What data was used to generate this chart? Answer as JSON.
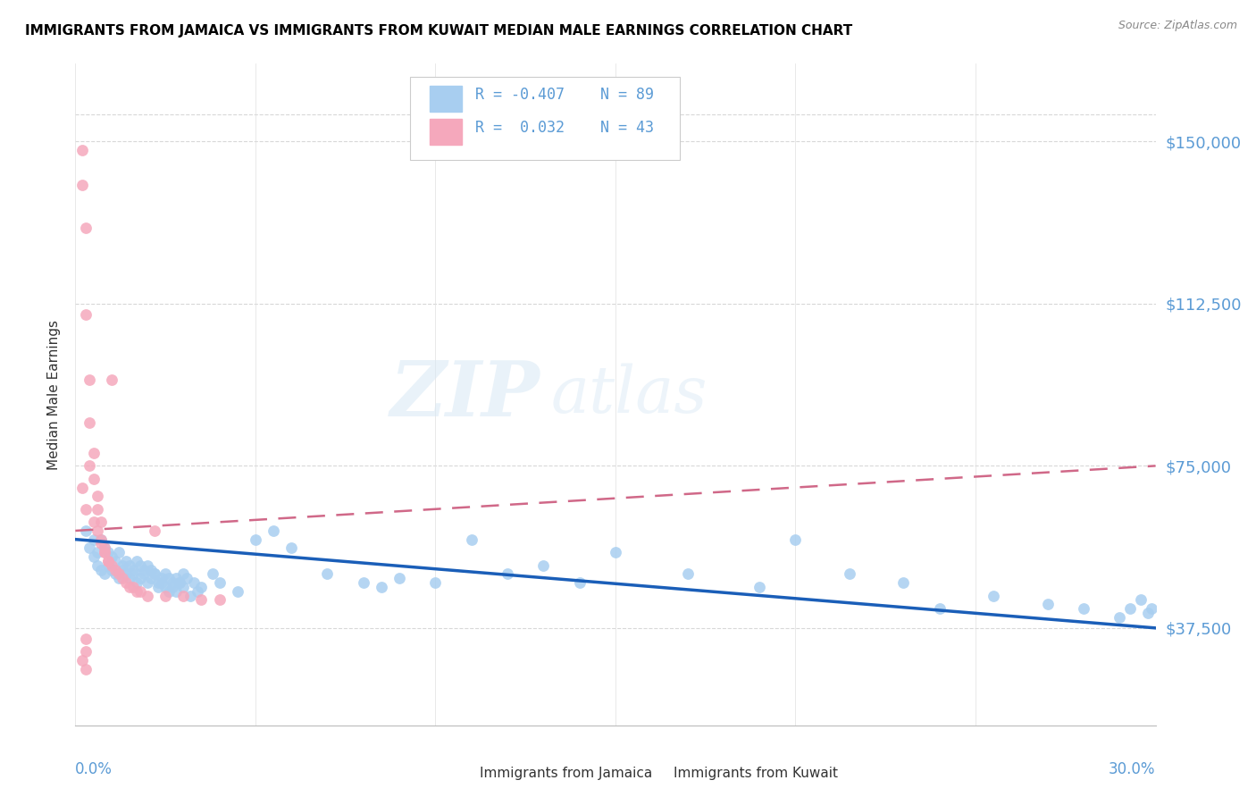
{
  "title": "IMMIGRANTS FROM JAMAICA VS IMMIGRANTS FROM KUWAIT MEDIAN MALE EARNINGS CORRELATION CHART",
  "source": "Source: ZipAtlas.com",
  "ylabel": "Median Male Earnings",
  "ytick_vals": [
    37500,
    75000,
    112500,
    150000
  ],
  "ytick_labels": [
    "$37,500",
    "$75,000",
    "$112,500",
    "$150,000"
  ],
  "ymin": 15000,
  "ymax": 168000,
  "xmin": 0.0,
  "xmax": 0.3,
  "jamaica_color": "#a8cef0",
  "jamaica_line_color": "#1a5eb8",
  "kuwait_color": "#f5a8bc",
  "kuwait_line_color": "#d06888",
  "jamaica_R": "-0.407",
  "jamaica_N": "89",
  "kuwait_R": "0.032",
  "kuwait_N": "43",
  "jamaica_label": "Immigrants from Jamaica",
  "kuwait_label": "Immigrants from Kuwait",
  "background_color": "#ffffff",
  "watermark_zip": "ZIP",
  "watermark_atlas": "atlas",
  "grid_color": "#d8d8d8",
  "label_color": "#5b9bd5",
  "legend_edge_color": "#cccccc",
  "jamaica_scatter_x": [
    0.003,
    0.005,
    0.004,
    0.006,
    0.005,
    0.007,
    0.006,
    0.008,
    0.007,
    0.009,
    0.008,
    0.01,
    0.009,
    0.011,
    0.01,
    0.012,
    0.011,
    0.013,
    0.012,
    0.014,
    0.013,
    0.015,
    0.014,
    0.016,
    0.015,
    0.017,
    0.016,
    0.018,
    0.017,
    0.019,
    0.018,
    0.02,
    0.019,
    0.021,
    0.02,
    0.022,
    0.021,
    0.023,
    0.022,
    0.024,
    0.023,
    0.025,
    0.024,
    0.026,
    0.025,
    0.027,
    0.026,
    0.028,
    0.027,
    0.029,
    0.028,
    0.03,
    0.029,
    0.031,
    0.03,
    0.032,
    0.033,
    0.034,
    0.035,
    0.038,
    0.04,
    0.045,
    0.05,
    0.055,
    0.06,
    0.07,
    0.08,
    0.085,
    0.09,
    0.1,
    0.11,
    0.12,
    0.13,
    0.14,
    0.15,
    0.17,
    0.19,
    0.2,
    0.215,
    0.23,
    0.24,
    0.255,
    0.27,
    0.28,
    0.29,
    0.293,
    0.296,
    0.298,
    0.299
  ],
  "jamaica_scatter_y": [
    60000,
    58000,
    56000,
    55000,
    54000,
    58000,
    52000,
    56000,
    51000,
    55000,
    50000,
    54000,
    52000,
    53000,
    51000,
    55000,
    50000,
    52000,
    49000,
    53000,
    51000,
    52000,
    50000,
    51000,
    49000,
    53000,
    50000,
    52000,
    48000,
    51000,
    49000,
    52000,
    50000,
    51000,
    48000,
    50000,
    49000,
    48000,
    50000,
    49000,
    47000,
    50000,
    48000,
    49000,
    47000,
    48000,
    46000,
    49000,
    47000,
    48000,
    46000,
    50000,
    48000,
    49000,
    47000,
    45000,
    48000,
    46000,
    47000,
    50000,
    48000,
    46000,
    58000,
    60000,
    56000,
    50000,
    48000,
    47000,
    49000,
    48000,
    58000,
    50000,
    52000,
    48000,
    55000,
    50000,
    47000,
    58000,
    50000,
    48000,
    42000,
    45000,
    43000,
    42000,
    40000,
    42000,
    44000,
    41000,
    42000
  ],
  "kuwait_scatter_x": [
    0.002,
    0.002,
    0.003,
    0.003,
    0.004,
    0.004,
    0.005,
    0.005,
    0.006,
    0.006,
    0.007,
    0.007,
    0.008,
    0.008,
    0.009,
    0.01,
    0.01,
    0.011,
    0.012,
    0.013,
    0.014,
    0.015,
    0.016,
    0.017,
    0.018,
    0.02,
    0.022,
    0.025,
    0.03,
    0.035,
    0.04,
    0.002,
    0.003,
    0.004,
    0.005,
    0.006,
    0.007,
    0.008,
    0.009,
    0.002,
    0.003,
    0.003,
    0.003
  ],
  "kuwait_scatter_y": [
    148000,
    140000,
    130000,
    110000,
    95000,
    85000,
    78000,
    72000,
    68000,
    65000,
    62000,
    58000,
    56000,
    55000,
    53000,
    95000,
    52000,
    51000,
    50000,
    49000,
    48000,
    47000,
    47000,
    46000,
    46000,
    45000,
    60000,
    45000,
    45000,
    44000,
    44000,
    70000,
    65000,
    75000,
    62000,
    60000,
    57000,
    55000,
    53000,
    30000,
    28000,
    35000,
    32000
  ]
}
